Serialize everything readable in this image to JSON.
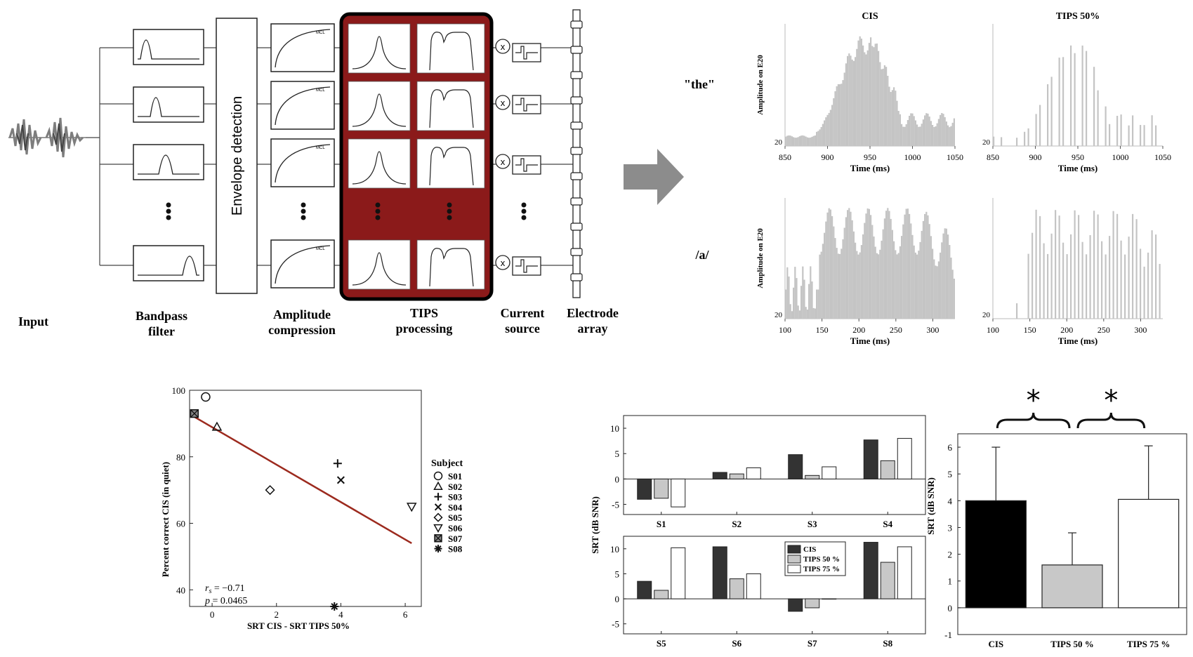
{
  "diagram": {
    "input_label": "Input",
    "bandpass_label": [
      "Bandpass",
      "filter"
    ],
    "envelope_label": "Envelope detection",
    "amplitude_label": [
      "Amplitude",
      "compression"
    ],
    "mcl_label": "MCL",
    "tips_label": [
      "TIPS",
      "processing"
    ],
    "current_label": [
      "Current",
      "source"
    ],
    "electrode_label": [
      "Electrode",
      "array"
    ],
    "multiply_symbol": "x",
    "colors": {
      "tips_block": "#8b1a1a",
      "arrow": "#8c8c8c"
    }
  },
  "electrodogram": {
    "row_labels": [
      "\"the\"",
      "/a/"
    ],
    "col_titles": [
      "CIS",
      "TIPS 50%"
    ],
    "ylabel": "Amplitude on E20",
    "ytick": "20",
    "xlabel": "Time (ms)",
    "bar_color": "#c4c4c4",
    "rows": [
      {
        "xlim": [
          850,
          1050
        ],
        "xticks": [
          "850",
          "900",
          "950",
          "1000",
          "1050"
        ]
      },
      {
        "xlim": [
          100,
          330
        ],
        "xticks": [
          "100",
          "150",
          "200",
          "250",
          "300"
        ]
      }
    ]
  },
  "chart_data": [
    {
      "type": "scatter",
      "xlabel": "SRT CIS - SRT TIPS 50%",
      "ylabel": "Percent correct CIS (in quiet)",
      "xlim": [
        -0.7,
        6.5
      ],
      "ylim": [
        35,
        100
      ],
      "xticks": [
        0,
        2,
        4,
        6
      ],
      "yticks": [
        40,
        60,
        80,
        100
      ],
      "legend_title": "Subject",
      "legend_position": "right",
      "points": [
        {
          "name": "S01",
          "x": -0.2,
          "y": 98,
          "marker": "circle"
        },
        {
          "name": "S02",
          "x": 0.15,
          "y": 89,
          "marker": "triangle-up"
        },
        {
          "name": "S03",
          "x": 3.9,
          "y": 78,
          "marker": "plus"
        },
        {
          "name": "S04",
          "x": 4.0,
          "y": 73,
          "marker": "x"
        },
        {
          "name": "S05",
          "x": 1.8,
          "y": 70,
          "marker": "diamond"
        },
        {
          "name": "S06",
          "x": 6.2,
          "y": 65,
          "marker": "triangle-down"
        },
        {
          "name": "S07",
          "x": -0.55,
          "y": 93,
          "marker": "boxed-x"
        },
        {
          "name": "S08",
          "x": 3.8,
          "y": 35,
          "marker": "asterisk"
        }
      ],
      "fit_line": {
        "x": [
          -0.55,
          6.2
        ],
        "y": [
          92,
          54
        ],
        "color": "#9c2a1e"
      },
      "stats": {
        "rs_label": "r",
        "rs_sub": "s",
        "rs_value": "= −0.71",
        "p_text": "p = 0.0465"
      }
    },
    {
      "type": "bar",
      "ylabel": "SRT (dB SNR)",
      "series": [
        {
          "name": "CIS",
          "color": "#333333"
        },
        {
          "name": "TIPS 50 %",
          "color": "#c8c8c8"
        },
        {
          "name": "TIPS 75 %",
          "color": "#ffffff"
        }
      ],
      "panels": [
        {
          "categories": [
            "S1",
            "S2",
            "S3",
            "S4"
          ],
          "ylim": [
            -7,
            12.5
          ],
          "yticks": [
            -5,
            0,
            5,
            10
          ],
          "values": [
            [
              -4.0,
              -3.8,
              -5.5
            ],
            [
              1.3,
              1.0,
              2.2
            ],
            [
              4.8,
              0.7,
              2.4
            ],
            [
              7.7,
              3.6,
              8.0
            ]
          ]
        },
        {
          "categories": [
            "S5",
            "S6",
            "S7",
            "S8"
          ],
          "ylim": [
            -7,
            12.5
          ],
          "yticks": [
            -5,
            0,
            5,
            10
          ],
          "values": [
            [
              3.5,
              1.7,
              10.2
            ],
            [
              10.4,
              4.0,
              5.0
            ],
            [
              -2.5,
              -1.8,
              0.0
            ],
            [
              11.3,
              7.3,
              10.4
            ]
          ],
          "legend": true
        }
      ]
    },
    {
      "type": "bar",
      "ylabel": "SRT (dB SNR)",
      "categories": [
        "CIS",
        "TIPS 50 %",
        "TIPS 75 %"
      ],
      "values": [
        4.0,
        1.6,
        4.05
      ],
      "errors": [
        2.0,
        1.2,
        2.0
      ],
      "colors": [
        "#000000",
        "#c8c8c8",
        "#ffffff"
      ],
      "ylim": [
        -1,
        6.5
      ],
      "yticks": [
        -1,
        0,
        1,
        2,
        3,
        4,
        5,
        6
      ],
      "significance": "*"
    }
  ]
}
